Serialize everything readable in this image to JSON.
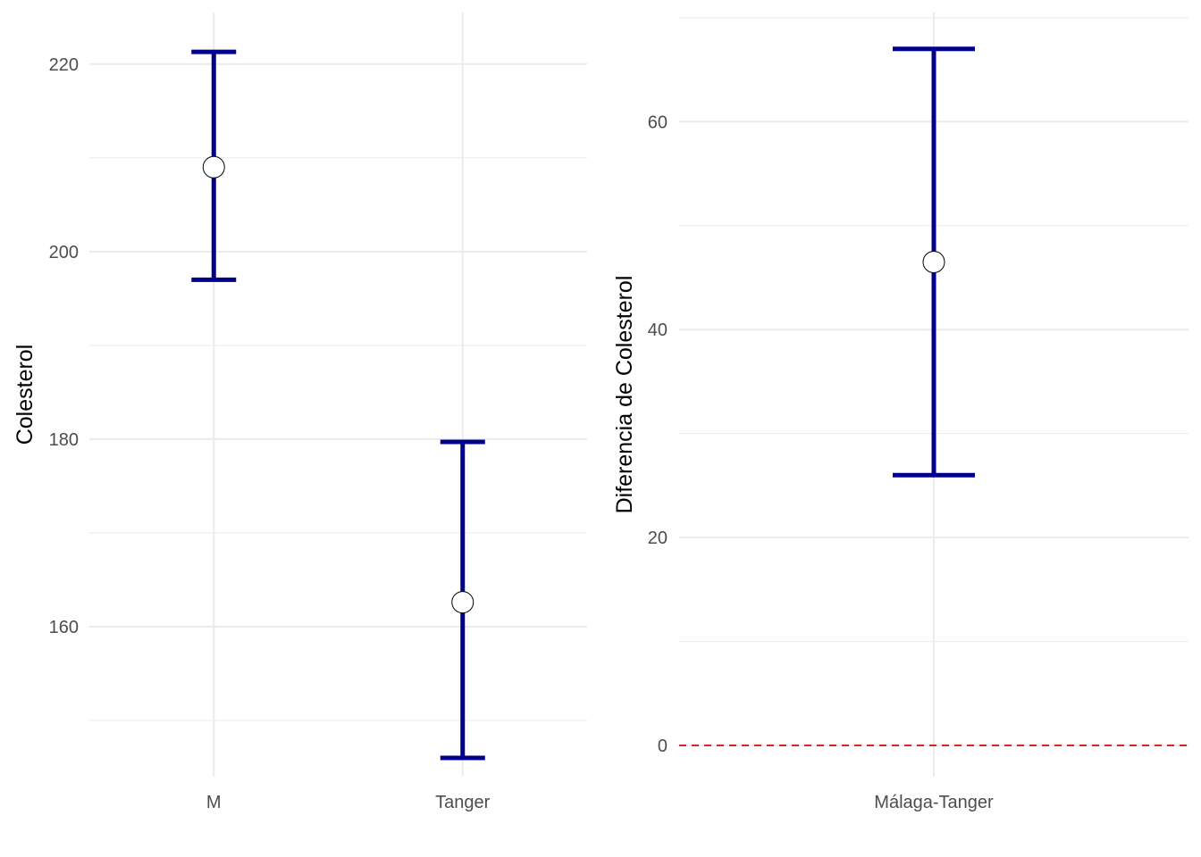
{
  "colors": {
    "errorbar": "#00008b",
    "point_fill": "#ffffff",
    "reference_line": "#d62728"
  },
  "chart_data": [
    {
      "type": "errorbar",
      "title": "",
      "xlabel": "",
      "ylabel": "Colesterol",
      "categories": [
        "M",
        "Tanger"
      ],
      "estimate": [
        209,
        162.6
      ],
      "lower": [
        197,
        146
      ],
      "upper": [
        221.3,
        179.7
      ],
      "ylim": [
        144,
        225.5
      ],
      "yticks": [
        160,
        180,
        200,
        220
      ],
      "grid": true
    },
    {
      "type": "errorbar",
      "title": "",
      "xlabel": "",
      "ylabel": "Diferencia de Colesterol",
      "categories": [
        "Málaga-Tanger"
      ],
      "estimate": [
        46.5
      ],
      "lower": [
        26
      ],
      "upper": [
        67
      ],
      "ylim": [
        -3,
        70.5
      ],
      "yticks": [
        0,
        20,
        40,
        60
      ],
      "reference_line": {
        "y": 0,
        "style": "dashed"
      },
      "grid": true
    }
  ]
}
